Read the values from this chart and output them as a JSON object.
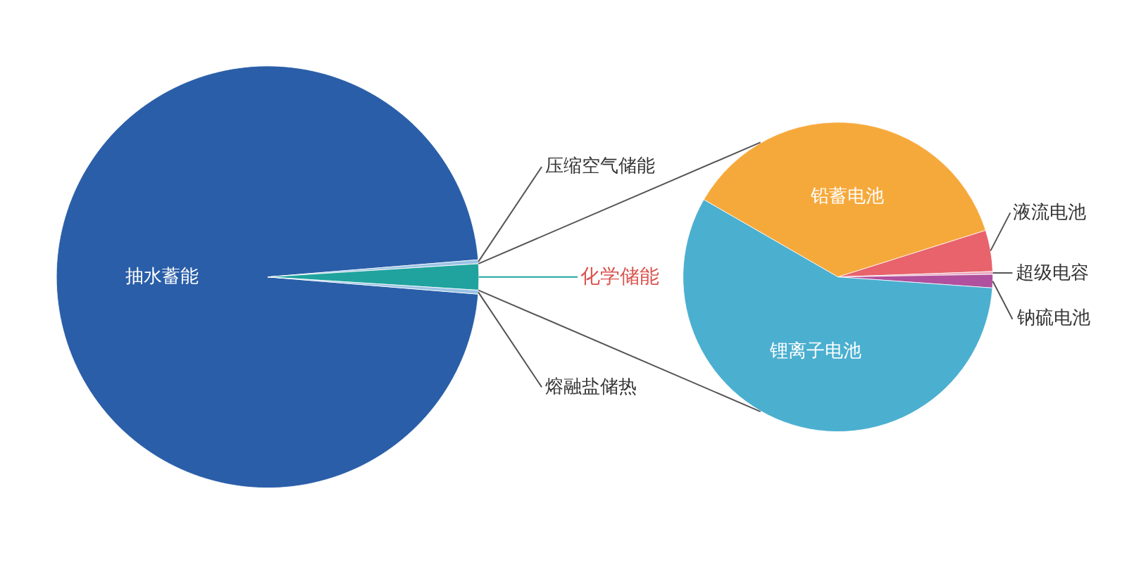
{
  "chart_data": [
    {
      "type": "pie",
      "categories": [
        "抽水蓄能",
        "压缩空气储能",
        "化学储能",
        "熔融盐储热"
      ],
      "values": [
        97.4,
        0.3,
        2.0,
        0.3
      ],
      "colors": [
        "#2a5ea8",
        "#9cc3e4",
        "#20a39e",
        "#9cc3e4"
      ],
      "legend": false
    },
    {
      "type": "pie",
      "categories": [
        "铅蓄电池",
        "液流电池",
        "超级电容",
        "钠硫电池",
        "锂离子电池"
      ],
      "values": [
        36.8,
        4.3,
        0.3,
        1.4,
        57.2
      ],
      "colors": [
        "#f6a93b",
        "#e8636b",
        "#eaa6bd",
        "#b0509e",
        "#4bafd0"
      ],
      "legend": false
    }
  ]
}
